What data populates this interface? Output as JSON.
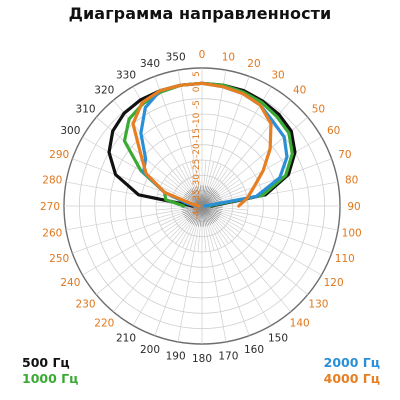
{
  "chart_data": {
    "type": "polar-line",
    "title": "Диаграмма направленности",
    "angle_labels": [
      "0",
      "10",
      "20",
      "30",
      "40",
      "50",
      "60",
      "70",
      "80",
      "90",
      "100",
      "110",
      "120",
      "130",
      "140",
      "150",
      "160",
      "170",
      "180",
      "190",
      "200",
      "210",
      "220",
      "230",
      "240",
      "250",
      "260",
      "270",
      "280",
      "290",
      "300",
      "310",
      "320",
      "330",
      "340",
      "350"
    ],
    "radial_labels": [
      "5",
      "0",
      "-5",
      "-10",
      "-15",
      "-20",
      "-25",
      "-30",
      "-35",
      "-40"
    ],
    "radial_range_db": [
      -40,
      5
    ],
    "radial_tick_step_db": 5,
    "angle_step_deg": 10,
    "grid": true,
    "legend": "bottom",
    "series": [
      {
        "name": "500 Гц",
        "color": "#111111",
        "points": [
          [
            270,
            -37
          ],
          [
            280,
            -19
          ],
          [
            290,
            -10
          ],
          [
            300,
            -5
          ],
          [
            310,
            -2
          ],
          [
            320,
            -0.5
          ],
          [
            330,
            0
          ],
          [
            340,
            0
          ],
          [
            350,
            0
          ],
          [
            0,
            0
          ],
          [
            10,
            0
          ],
          [
            20,
            0
          ],
          [
            30,
            -0.5
          ],
          [
            40,
            -1
          ],
          [
            50,
            -2
          ],
          [
            60,
            -5
          ],
          [
            70,
            -10
          ],
          [
            80,
            -19
          ],
          [
            90,
            -37
          ]
        ]
      },
      {
        "name": "1000 Гц",
        "color": "#3aaa35",
        "points": [
          [
            270,
            -34
          ],
          [
            280,
            -28
          ],
          [
            290,
            -27
          ],
          [
            300,
            -17
          ],
          [
            310,
            -7
          ],
          [
            320,
            -3
          ],
          [
            330,
            -1.5
          ],
          [
            340,
            -0.5
          ],
          [
            350,
            0
          ],
          [
            0,
            0
          ],
          [
            10,
            0
          ],
          [
            20,
            -0.5
          ],
          [
            30,
            -1
          ],
          [
            40,
            -2
          ],
          [
            50,
            -3
          ],
          [
            60,
            -6
          ],
          [
            70,
            -11
          ],
          [
            80,
            -20
          ],
          [
            90,
            -38
          ]
        ]
      },
      {
        "name": "2000 Гц",
        "color": "#2a8fd6",
        "points": [
          [
            270,
            -38
          ],
          [
            280,
            -35
          ],
          [
            290,
            -27
          ],
          [
            300,
            -18
          ],
          [
            310,
            -16
          ],
          [
            320,
            -9
          ],
          [
            330,
            -3
          ],
          [
            340,
            0
          ],
          [
            350,
            0
          ],
          [
            0,
            0
          ],
          [
            10,
            -0.5
          ],
          [
            20,
            -1
          ],
          [
            30,
            -2
          ],
          [
            40,
            -4
          ],
          [
            50,
            -5
          ],
          [
            60,
            -8
          ],
          [
            70,
            -13
          ],
          [
            80,
            -22
          ],
          [
            90,
            -39
          ]
        ]
      },
      {
        "name": "4000 Гц",
        "color": "#e67e22",
        "points": [
          [
            270,
            -39
          ],
          [
            280,
            -37
          ],
          [
            290,
            -27
          ],
          [
            300,
            -19
          ],
          [
            310,
            -14
          ],
          [
            320,
            -5
          ],
          [
            330,
            -1
          ],
          [
            340,
            0
          ],
          [
            350,
            0
          ],
          [
            0,
            0
          ],
          [
            10,
            -0.5
          ],
          [
            20,
            -1
          ],
          [
            30,
            -2
          ],
          [
            40,
            -5
          ],
          [
            50,
            -11
          ],
          [
            60,
            -17
          ],
          [
            70,
            -22
          ],
          [
            80,
            -25
          ],
          [
            90,
            -28
          ]
        ]
      }
    ]
  },
  "colors": {
    "grid": "#cfcfcf",
    "grid_strong": "#6d6d6d",
    "angle_label": "#e0781e",
    "angle_label_bottom": "#2b2b2b",
    "radial_label": "#e0781e"
  },
  "legend": {
    "items": [
      {
        "label": "500 Гц",
        "color": "#111111"
      },
      {
        "label": "1000 Гц",
        "color": "#3aaa35"
      },
      {
        "label": "2000 Гц",
        "color": "#2a8fd6"
      },
      {
        "label": "4000 Гц",
        "color": "#e67e22"
      }
    ]
  }
}
